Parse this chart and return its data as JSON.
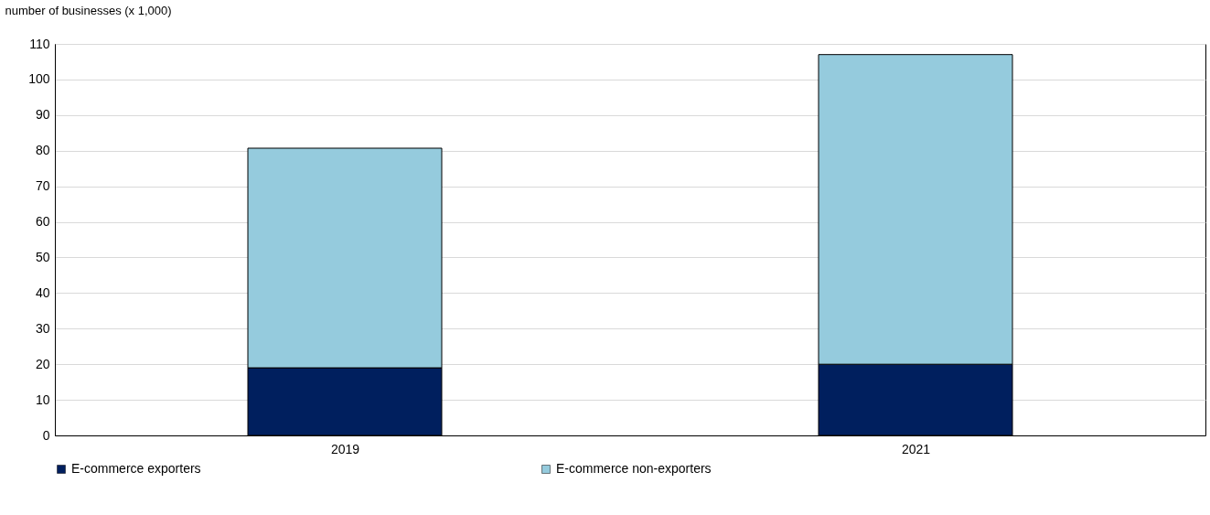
{
  "chart_data": {
    "type": "bar",
    "stacked": true,
    "ylabel": "number of businesses (x 1,000)",
    "categories": [
      "2019",
      "2021"
    ],
    "series": [
      {
        "name": "E-commerce exporters",
        "color": "#001f5e",
        "values": [
          19,
          20
        ]
      },
      {
        "name": "E-commerce non-exporters",
        "color": "#95cbdd",
        "values": [
          61.7,
          87
        ]
      }
    ],
    "ylim": [
      0,
      110
    ],
    "yticks": [
      0,
      10,
      20,
      30,
      40,
      50,
      60,
      70,
      80,
      90,
      100,
      110
    ],
    "grid": "y",
    "legend": "bottom"
  }
}
